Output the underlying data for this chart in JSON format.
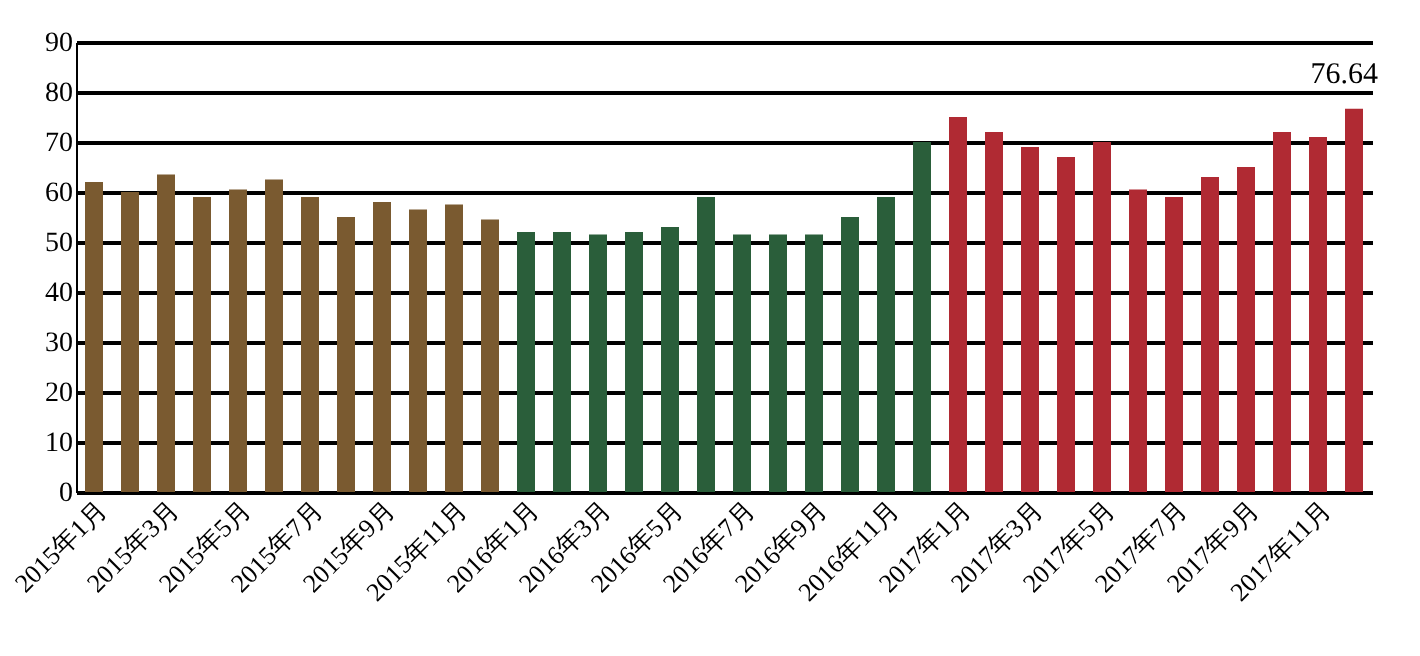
{
  "chart_data": {
    "type": "bar",
    "categories": [
      "2015年1月",
      null,
      "2015年3月",
      null,
      "2015年5月",
      null,
      "2015年7月",
      null,
      "2015年9月",
      null,
      "2015年11月",
      null,
      "2016年1月",
      null,
      "2016年3月",
      null,
      "2016年5月",
      null,
      "2016年7月",
      null,
      "2016年9月",
      null,
      "2016年11月",
      null,
      "2017年1月",
      null,
      "2017年3月",
      null,
      "2017年5月",
      null,
      "2017年7月",
      null,
      "2017年9月",
      null,
      "2017年11月",
      null
    ],
    "values": [
      62,
      60,
      63.5,
      59,
      60.5,
      62.5,
      59,
      55,
      58,
      56.5,
      57.5,
      54.5,
      52,
      52,
      51.5,
      52,
      53,
      59,
      51.5,
      51.5,
      51.5,
      55,
      59,
      70,
      75,
      72,
      69,
      67,
      70,
      60.5,
      59,
      63,
      65,
      72,
      71,
      76.64
    ],
    "colors": [
      "#7a5a30",
      "#7a5a30",
      "#7a5a30",
      "#7a5a30",
      "#7a5a30",
      "#7a5a30",
      "#7a5a30",
      "#7a5a30",
      "#7a5a30",
      "#7a5a30",
      "#7a5a30",
      "#7a5a30",
      "#2a5e3a",
      "#2a5e3a",
      "#2a5e3a",
      "#2a5e3a",
      "#2a5e3a",
      "#2a5e3a",
      "#2a5e3a",
      "#2a5e3a",
      "#2a5e3a",
      "#2a5e3a",
      "#2a5e3a",
      "#2a5e3a",
      "#b02a33",
      "#b02a33",
      "#b02a33",
      "#b02a33",
      "#b02a33",
      "#b02a33",
      "#b02a33",
      "#b02a33",
      "#b02a33",
      "#b02a33",
      "#b02a33",
      "#b02a33"
    ],
    "value_labels": [
      null,
      null,
      null,
      null,
      null,
      null,
      null,
      null,
      null,
      null,
      null,
      null,
      null,
      null,
      null,
      null,
      null,
      null,
      null,
      null,
      null,
      null,
      null,
      null,
      null,
      null,
      null,
      null,
      null,
      null,
      null,
      null,
      null,
      null,
      null,
      "76.64"
    ],
    "ylim": [
      0,
      90
    ],
    "yticks": [
      0,
      10,
      20,
      30,
      40,
      50,
      60,
      70,
      80,
      90
    ],
    "grid": "y"
  }
}
